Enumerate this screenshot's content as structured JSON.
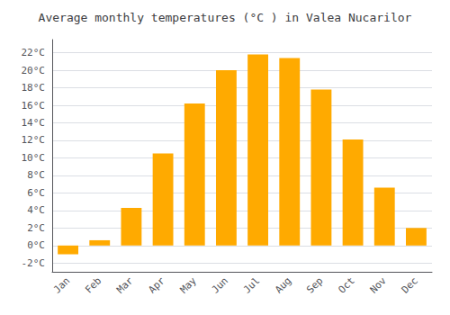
{
  "chart_data": {
    "type": "bar",
    "title": "Average monthly temperatures (°C ) in Valea Nucarilor",
    "categories": [
      "Jan",
      "Feb",
      "Mar",
      "Apr",
      "May",
      "Jun",
      "Jul",
      "Aug",
      "Sep",
      "Oct",
      "Nov",
      "Dec"
    ],
    "values": [
      -1.0,
      0.6,
      4.3,
      10.5,
      16.2,
      20.0,
      21.8,
      21.4,
      17.8,
      12.1,
      6.6,
      2.0
    ],
    "color": "#FFAA00",
    "ylim": [
      -3.0,
      23.5
    ],
    "yticks": [
      {
        "value": -2,
        "label": "-2°C"
      },
      {
        "value": 0,
        "label": "0°C"
      },
      {
        "value": 2,
        "label": "2°C"
      },
      {
        "value": 4,
        "label": "4°C"
      },
      {
        "value": 6,
        "label": "6°C"
      },
      {
        "value": 8,
        "label": "8°C"
      },
      {
        "value": 10,
        "label": "10°C"
      },
      {
        "value": 12,
        "label": "12°C"
      },
      {
        "value": 14,
        "label": "14°C"
      },
      {
        "value": 16,
        "label": "16°C"
      },
      {
        "value": 18,
        "label": "18°C"
      },
      {
        "value": 20,
        "label": "20°C"
      },
      {
        "value": 22,
        "label": "22°C"
      }
    ],
    "grid": true
  }
}
